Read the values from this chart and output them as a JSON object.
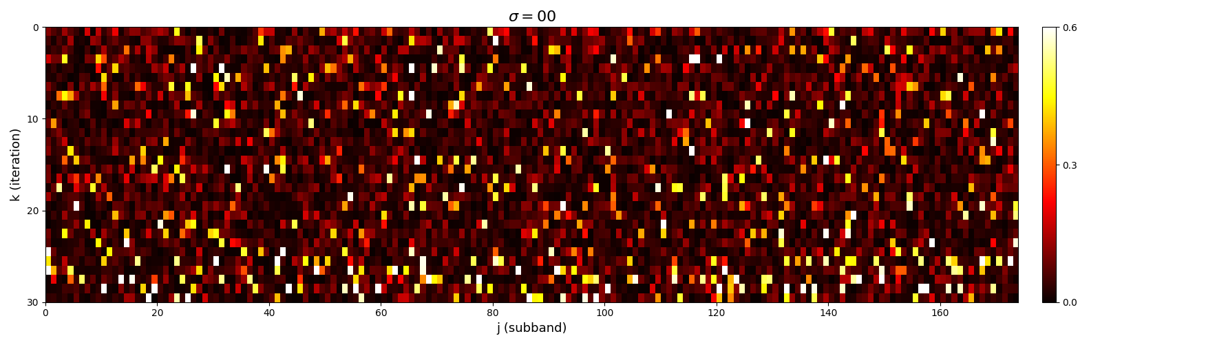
{
  "title": "$\\sigma = 00$",
  "xlabel": "j (subband)",
  "ylabel": "k (iteration)",
  "vmin": 0.0,
  "vmax": 0.6,
  "cmap": "hot",
  "colorbar_ticks": [
    0.0,
    0.3,
    0.6
  ],
  "colorbar_labels": [
    "0.0",
    "0.3",
    "0.6"
  ],
  "n_rows": 30,
  "n_cols": 174,
  "extent": [
    0,
    174,
    30,
    0
  ],
  "yticks": [
    0,
    10,
    20,
    30
  ],
  "xticks": [
    0,
    20,
    40,
    60,
    80,
    100,
    120,
    140,
    160
  ],
  "figsize": [
    17.84,
    5.01
  ],
  "dpi": 100
}
